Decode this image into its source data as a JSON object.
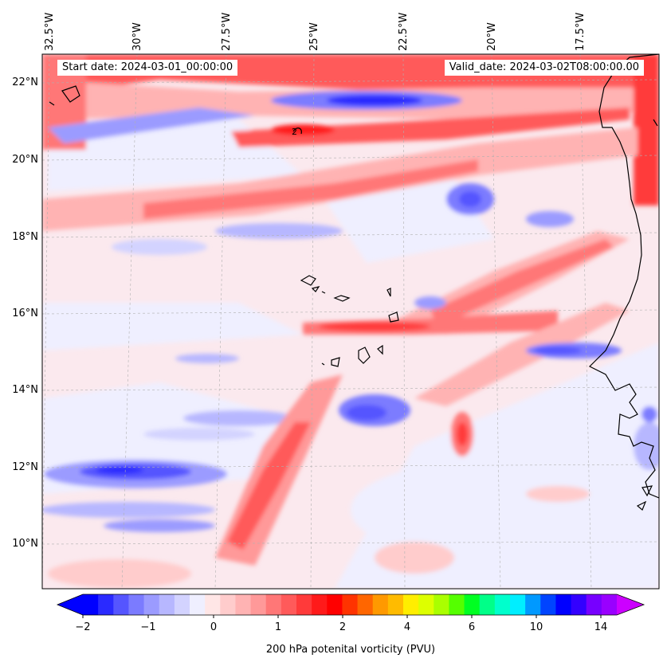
{
  "map": {
    "title_left": "Start date: 2024-03-01_00:00:00",
    "title_right": "Valid_date: 2024-03-02T08:00:00.00",
    "lon_labels": [
      "32.5°W",
      "30°W",
      "27.5°W",
      "25°W",
      "22.5°W",
      "20°W",
      "17.5°W"
    ],
    "lat_labels": [
      "22°N",
      "20°N",
      "18°N",
      "16°N",
      "14°N",
      "12°N",
      "10°N"
    ],
    "contour_label": "2"
  },
  "colorbar": {
    "ticks": [
      "−2",
      "−1",
      "0",
      "1",
      "2",
      "4",
      "6",
      "10",
      "14"
    ],
    "label": "200 hPa potenital vorticity (PVU)",
    "colors": [
      "#0000ff",
      "#2a2aff",
      "#5555ff",
      "#7b7bff",
      "#9b9bff",
      "#b7b7ff",
      "#d3d3ff",
      "#efefff",
      "#ffe6e6",
      "#ffcccc",
      "#ffb3b3",
      "#ff9999",
      "#ff7777",
      "#ff5a5a",
      "#ff3a3a",
      "#ff1a1a",
      "#ff0000",
      "#ff3300",
      "#ff6600",
      "#ff9900",
      "#ffbb00",
      "#ffee00",
      "#ddff00",
      "#aaff00",
      "#55ff00",
      "#00ff22",
      "#00ff88",
      "#00ffcc",
      "#00eeff",
      "#0099ff",
      "#0044ff",
      "#0000ff",
      "#3300ff",
      "#7700ff",
      "#9900ff"
    ],
    "extend_low": "#0000ff",
    "extend_high": "#cc00ff"
  }
}
